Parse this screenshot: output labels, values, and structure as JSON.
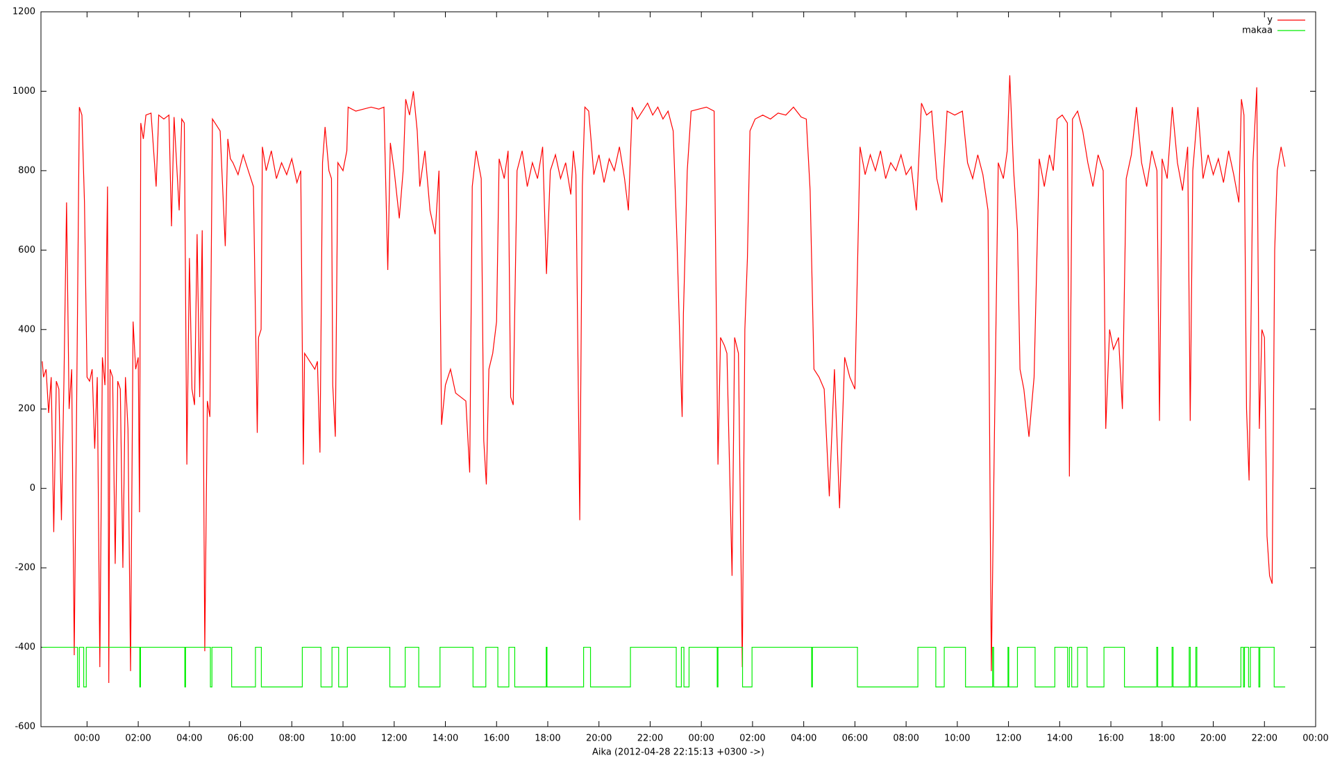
{
  "chart_data": {
    "type": "line",
    "xlabel": "Aika (2012-04-28 22:15:13 +0300 ->)",
    "xlim": [
      22.2,
      72
    ],
    "xticks": [
      {
        "value": 24,
        "label": "00:00"
      },
      {
        "value": 26,
        "label": "02:00"
      },
      {
        "value": 28,
        "label": "04:00"
      },
      {
        "value": 30,
        "label": "06:00"
      },
      {
        "value": 32,
        "label": "08:00"
      },
      {
        "value": 34,
        "label": "10:00"
      },
      {
        "value": 36,
        "label": "12:00"
      },
      {
        "value": 38,
        "label": "14:00"
      },
      {
        "value": 40,
        "label": "16:00"
      },
      {
        "value": 42,
        "label": "18:00"
      },
      {
        "value": 44,
        "label": "20:00"
      },
      {
        "value": 46,
        "label": "22:00"
      },
      {
        "value": 48,
        "label": "00:00"
      },
      {
        "value": 50,
        "label": "02:00"
      },
      {
        "value": 52,
        "label": "04:00"
      },
      {
        "value": 54,
        "label": "06:00"
      },
      {
        "value": 56,
        "label": "08:00"
      },
      {
        "value": 58,
        "label": "10:00"
      },
      {
        "value": 60,
        "label": "12:00"
      },
      {
        "value": 62,
        "label": "14:00"
      },
      {
        "value": 64,
        "label": "16:00"
      },
      {
        "value": 66,
        "label": "18:00"
      },
      {
        "value": 68,
        "label": "20:00"
      },
      {
        "value": 70,
        "label": "22:00"
      },
      {
        "value": 72,
        "label": "00:00"
      }
    ],
    "ylim": [
      -600,
      1200
    ],
    "yticks": [
      -600,
      -400,
      -200,
      0,
      200,
      400,
      600,
      800,
      1000,
      1200
    ],
    "grid": false,
    "legend": "top right",
    "series": [
      {
        "name": "y",
        "color": "#ff0000",
        "x": [
          22.25,
          22.3,
          22.4,
          22.5,
          22.6,
          22.7,
          22.8,
          22.9,
          23.0,
          23.1,
          23.2,
          23.3,
          23.4,
          23.5,
          23.6,
          23.7,
          23.8,
          23.9,
          24.0,
          24.1,
          24.2,
          24.3,
          24.4,
          24.5,
          24.6,
          24.7,
          24.8,
          24.85,
          24.9,
          25.0,
          25.1,
          25.2,
          25.3,
          25.4,
          25.5,
          25.6,
          25.7,
          25.8,
          25.9,
          26.0,
          26.05,
          26.1,
          26.2,
          26.3,
          26.5,
          26.7,
          26.8,
          27.0,
          27.2,
          27.3,
          27.4,
          27.6,
          27.7,
          27.8,
          27.9,
          28.0,
          28.1,
          28.2,
          28.3,
          28.4,
          28.5,
          28.6,
          28.7,
          28.8,
          28.9,
          29.0,
          29.2,
          29.4,
          29.5,
          29.6,
          29.7,
          29.9,
          30.1,
          30.3,
          30.5,
          30.6,
          30.65,
          30.7,
          30.8,
          30.85,
          31.0,
          31.2,
          31.4,
          31.6,
          31.8,
          32.0,
          32.2,
          32.35,
          32.45,
          32.5,
          32.7,
          32.9,
          33.0,
          33.1,
          33.2,
          33.3,
          33.45,
          33.55,
          33.6,
          33.7,
          33.8,
          34.0,
          34.15,
          34.2,
          34.5,
          34.8,
          35.1,
          35.4,
          35.6,
          35.75,
          35.85,
          36.0,
          36.2,
          36.35,
          36.45,
          36.6,
          36.75,
          36.9,
          37.0,
          37.2,
          37.4,
          37.6,
          37.75,
          37.85,
          38.0,
          38.2,
          38.4,
          38.6,
          38.8,
          38.95,
          39.05,
          39.2,
          39.4,
          39.5,
          39.6,
          39.7,
          39.85,
          40.0,
          40.1,
          40.3,
          40.45,
          40.55,
          40.65,
          40.8,
          41.0,
          41.2,
          41.4,
          41.6,
          41.8,
          41.95,
          42.1,
          42.3,
          42.5,
          42.7,
          42.9,
          43.0,
          43.1,
          43.25,
          43.35,
          43.45,
          43.6,
          43.8,
          44.0,
          44.2,
          44.4,
          44.6,
          44.8,
          45.0,
          45.15,
          45.3,
          45.5,
          45.7,
          45.9,
          46.1,
          46.3,
          46.5,
          46.7,
          46.9,
          47.05,
          47.2,
          47.25,
          47.3,
          47.45,
          47.6,
          47.9,
          48.2,
          48.5,
          48.65,
          48.75,
          48.9,
          49.0,
          49.2,
          49.3,
          49.45,
          49.6,
          49.7,
          49.8,
          49.9,
          50.1,
          50.4,
          50.7,
          51.0,
          51.3,
          51.6,
          51.9,
          52.1,
          52.25,
          52.4,
          52.6,
          52.8,
          53.0,
          53.2,
          53.4,
          53.6,
          53.8,
          54.0,
          54.2,
          54.4,
          54.6,
          54.8,
          55.0,
          55.2,
          55.4,
          55.6,
          55.8,
          56.0,
          56.2,
          56.4,
          56.6,
          56.8,
          57.0,
          57.2,
          57.4,
          57.6,
          57.9,
          58.2,
          58.4,
          58.6,
          58.8,
          59.0,
          59.2,
          59.33,
          59.45,
          59.6,
          59.8,
          59.95,
          60.05,
          60.2,
          60.35,
          60.45,
          60.6,
          60.8,
          61.0,
          61.2,
          61.4,
          61.6,
          61.75,
          61.9,
          62.1,
          62.3,
          62.38,
          62.5,
          62.7,
          62.9,
          63.1,
          63.3,
          63.5,
          63.7,
          63.8,
          63.95,
          64.1,
          64.3,
          64.45,
          64.6,
          64.8,
          65.0,
          65.2,
          65.4,
          65.6,
          65.8,
          65.9,
          66.0,
          66.2,
          66.4,
          66.6,
          66.8,
          67.0,
          67.1,
          67.2,
          67.4,
          67.6,
          67.8,
          68.0,
          68.2,
          68.4,
          68.6,
          68.8,
          69.0,
          69.1,
          69.2,
          69.3,
          69.4,
          69.55,
          69.7,
          69.8,
          69.9,
          70.0,
          70.1,
          70.2,
          70.3,
          70.4,
          70.5,
          70.65,
          70.8
        ],
        "values": [
          320,
          280,
          300,
          190,
          280,
          -110,
          270,
          250,
          -80,
          280,
          720,
          200,
          300,
          -420,
          250,
          960,
          940,
          720,
          280,
          270,
          300,
          100,
          280,
          -450,
          330,
          260,
          760,
          -490,
          300,
          280,
          -190,
          270,
          250,
          -200,
          280,
          150,
          -460,
          420,
          300,
          330,
          -60,
          920,
          880,
          940,
          945,
          760,
          940,
          930,
          940,
          660,
          935,
          700,
          930,
          920,
          60,
          580,
          250,
          210,
          640,
          230,
          650,
          -410,
          220,
          180,
          930,
          920,
          900,
          610,
          880,
          830,
          820,
          790,
          840,
          800,
          760,
          350,
          140,
          380,
          400,
          860,
          800,
          850,
          780,
          820,
          790,
          830,
          770,
          800,
          60,
          340,
          320,
          300,
          320,
          90,
          820,
          910,
          800,
          780,
          260,
          130,
          820,
          800,
          850,
          960,
          950,
          955,
          960,
          955,
          960,
          550,
          870,
          800,
          680,
          800,
          980,
          940,
          1000,
          900,
          760,
          850,
          700,
          640,
          800,
          160,
          260,
          300,
          240,
          230,
          220,
          40,
          760,
          850,
          780,
          120,
          10,
          300,
          340,
          420,
          830,
          780,
          850,
          230,
          210,
          800,
          850,
          760,
          820,
          780,
          860,
          540,
          800,
          840,
          780,
          820,
          740,
          850,
          790,
          -80,
          760,
          960,
          950,
          790,
          840,
          770,
          830,
          800,
          860,
          780,
          700,
          960,
          930,
          950,
          970,
          940,
          960,
          930,
          950,
          900,
          620,
          280,
          180,
          440,
          800,
          950,
          955,
          960,
          950,
          60,
          380,
          360,
          340,
          -220,
          380,
          340,
          -450,
          400,
          580,
          900,
          930,
          940,
          930,
          945,
          940,
          960,
          935,
          930,
          750,
          300,
          280,
          250,
          -20,
          300,
          -50,
          330,
          280,
          250,
          860,
          790,
          840,
          800,
          850,
          780,
          820,
          800,
          840,
          790,
          810,
          700,
          970,
          940,
          950,
          780,
          720,
          950,
          940,
          950,
          820,
          780,
          840,
          790,
          700,
          -460,
          130,
          820,
          780,
          850,
          1040,
          800,
          650,
          300,
          250,
          130,
          280,
          830,
          760,
          840,
          800,
          930,
          940,
          920,
          30,
          930,
          950,
          900,
          820,
          760,
          840,
          800,
          150,
          400,
          350,
          380,
          200,
          780,
          840,
          960,
          820,
          760,
          850,
          800,
          170,
          830,
          780,
          960,
          820,
          750,
          860,
          170,
          800,
          960,
          780,
          840,
          790,
          830,
          770,
          850,
          790,
          720,
          980,
          940,
          200,
          20,
          820,
          1010,
          150,
          400,
          380,
          -120,
          -220,
          -240,
          600,
          800,
          860,
          810
        ]
      },
      {
        "name": "makaa",
        "color": "#00ee00",
        "x": [
          22.25,
          23.63,
          23.63,
          23.7,
          23.7,
          23.87,
          23.87,
          23.97,
          23.97,
          26.06,
          26.06,
          26.09,
          26.09,
          27.82,
          27.82,
          27.85,
          27.85,
          28.82,
          28.82,
          28.88,
          28.88,
          29.65,
          29.65,
          30.58,
          30.58,
          30.81,
          30.81,
          32.41,
          32.41,
          33.14,
          33.14,
          33.57,
          33.57,
          33.83,
          33.83,
          34.17,
          34.17,
          35.83,
          35.83,
          36.43,
          36.43,
          36.96,
          36.96,
          37.79,
          37.79,
          39.08,
          39.08,
          39.58,
          39.58,
          40.05,
          40.05,
          40.48,
          40.48,
          40.71,
          40.71,
          41.94,
          41.94,
          41.97,
          41.97,
          43.4,
          43.4,
          43.67,
          43.67,
          45.23,
          45.23,
          47.02,
          47.02,
          47.22,
          47.22,
          47.32,
          47.32,
          47.52,
          47.52,
          48.62,
          48.62,
          48.65,
          48.65,
          49.61,
          49.61,
          49.98,
          49.98,
          52.31,
          52.31,
          52.34,
          52.34,
          54.1,
          54.1,
          56.46,
          56.46,
          57.16,
          57.16,
          57.49,
          57.49,
          58.32,
          58.32,
          59.38,
          59.38,
          59.42,
          59.42,
          59.98,
          59.98,
          60.01,
          60.01,
          60.35,
          60.35,
          61.04,
          61.04,
          61.81,
          61.81,
          62.31,
          62.31,
          62.38,
          62.38,
          62.47,
          62.47,
          62.7,
          62.7,
          63.07,
          63.07,
          63.73,
          63.73,
          64.53,
          64.53,
          65.79,
          65.79,
          65.83,
          65.83,
          66.39,
          66.39,
          66.43,
          66.43,
          67.06,
          67.06,
          67.1,
          67.1,
          67.32,
          67.32,
          67.36,
          67.36,
          69.08,
          69.08,
          69.18,
          69.18,
          69.22,
          69.22,
          69.38,
          69.38,
          69.45,
          69.45,
          69.78,
          69.78,
          69.82,
          69.82,
          70.38,
          70.38,
          70.81
        ],
        "values": [
          -400,
          -400,
          -500,
          -500,
          -400,
          -400,
          -500,
          -500,
          -400,
          -400,
          -500,
          -500,
          -400,
          -400,
          -500,
          -500,
          -400,
          -400,
          -500,
          -500,
          -400,
          -400,
          -500,
          -500,
          -400,
          -400,
          -500,
          -500,
          -400,
          -400,
          -500,
          -500,
          -400,
          -400,
          -500,
          -500,
          -400,
          -400,
          -500,
          -500,
          -400,
          -400,
          -500,
          -500,
          -400,
          -400,
          -500,
          -500,
          -400,
          -400,
          -500,
          -500,
          -400,
          -400,
          -500,
          -500,
          -400,
          -400,
          -500,
          -500,
          -400,
          -400,
          -500,
          -500,
          -400,
          -400,
          -500,
          -500,
          -400,
          -400,
          -500,
          -500,
          -400,
          -400,
          -500,
          -500,
          -400,
          -400,
          -500,
          -500,
          -400,
          -400,
          -500,
          -500,
          -400,
          -400,
          -500,
          -500,
          -400,
          -400,
          -500,
          -500,
          -400,
          -400,
          -500,
          -500,
          -400,
          -400,
          -500,
          -500,
          -400,
          -400,
          -500,
          -500,
          -400,
          -400,
          -500,
          -500,
          -400,
          -400,
          -500,
          -500,
          -400,
          -400,
          -500,
          -500,
          -400,
          -400,
          -500,
          -500,
          -400,
          -400,
          -500,
          -500,
          -400,
          -400,
          -500,
          -500,
          -400,
          -400,
          -500,
          -500,
          -400,
          -400,
          -500,
          -500,
          -400,
          -400,
          -500,
          -500,
          -400,
          -400,
          -500,
          -500,
          -400,
          -400,
          -500,
          -500,
          -400,
          -400,
          -500,
          -500,
          -400,
          -400,
          -500,
          -500
        ]
      }
    ]
  }
}
